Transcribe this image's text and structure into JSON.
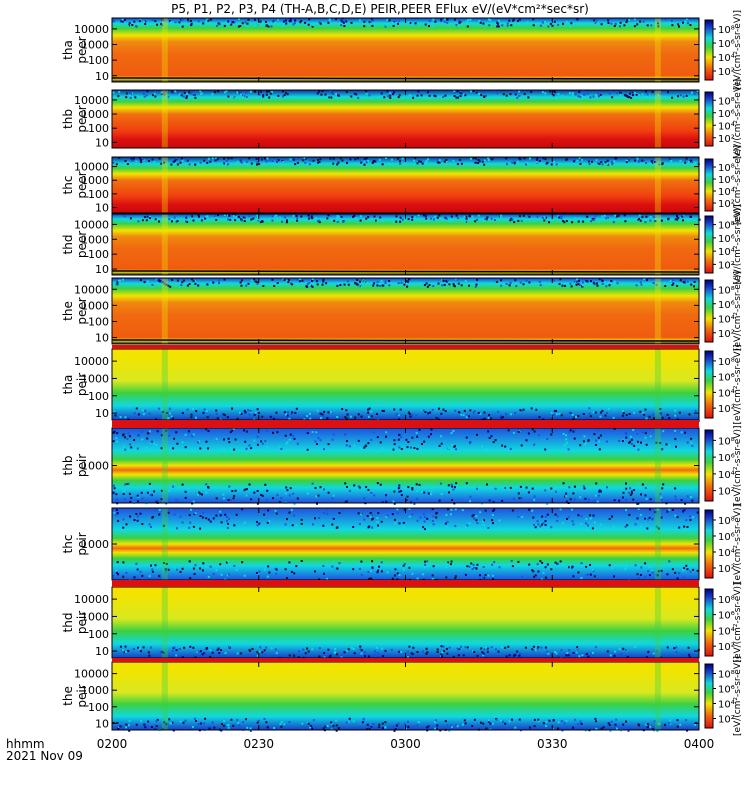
{
  "title": "P5, P1, P2, P3, P4 (TH-A,B,C,D,E) PEIR,PEER EFlux eV/(eV*cm²*sec*sr)",
  "time_axis": {
    "label_line1": "hhmm",
    "label_line2": "2021 Nov 09",
    "ticks": [
      "0200",
      "0230",
      "0300",
      "0330",
      "0400"
    ]
  },
  "colorbar": {
    "ticks": [
      "10²",
      "10⁴",
      "10⁶",
      "10⁸"
    ],
    "side_label": "[eV/(cm²-s-sr-eV)]"
  },
  "colors": {
    "red": "#dc1010",
    "orange": "#f06a10",
    "yellow": "#f2e400",
    "green": "#3cd040",
    "cyan": "#10d8e0",
    "blue": "#2050e0",
    "navy": "#000080",
    "dark": "#101030"
  },
  "chart_data": [
    {
      "type": "heatmap",
      "probe": "tha",
      "instrument": "peer",
      "ylabel1": "tha",
      "ylabel2": "peer",
      "yticks": [
        "10",
        "100",
        "1000",
        "10000"
      ]
    },
    {
      "type": "heatmap",
      "probe": "thb",
      "instrument": "peer",
      "ylabel1": "thb",
      "ylabel2": "peer",
      "yticks": [
        "10",
        "100",
        "1000",
        "10000"
      ]
    },
    {
      "type": "heatmap",
      "probe": "thc",
      "instrument": "peer",
      "ylabel1": "thc",
      "ylabel2": "peer",
      "yticks": [
        "10",
        "100",
        "1000",
        "10000"
      ]
    },
    {
      "type": "heatmap",
      "probe": "thd",
      "instrument": "peer",
      "ylabel1": "thd",
      "ylabel2": "peer",
      "yticks": [
        "10",
        "100",
        "1000",
        "10000"
      ]
    },
    {
      "type": "heatmap",
      "probe": "the",
      "instrument": "peer",
      "ylabel1": "the",
      "ylabel2": "peer",
      "yticks": [
        "10",
        "100",
        "1000",
        "10000"
      ]
    },
    {
      "type": "heatmap",
      "probe": "tha",
      "instrument": "peir",
      "ylabel1": "tha",
      "ylabel2": "peir",
      "yticks": [
        "10",
        "100",
        "1000",
        "10000"
      ]
    },
    {
      "type": "heatmap",
      "probe": "thb",
      "instrument": "peir",
      "ylabel1": "thb",
      "ylabel2": "peir",
      "yticks": [
        "1000"
      ]
    },
    {
      "type": "heatmap",
      "probe": "thc",
      "instrument": "peir",
      "ylabel1": "thc",
      "ylabel2": "peir",
      "yticks": [
        "1000"
      ]
    },
    {
      "type": "heatmap",
      "probe": "thd",
      "instrument": "peir",
      "ylabel1": "thd",
      "ylabel2": "peir",
      "yticks": [
        "10",
        "100",
        "1000",
        "10000"
      ]
    },
    {
      "type": "heatmap",
      "probe": "the",
      "instrument": "peir",
      "ylabel1": "the",
      "ylabel2": "peir",
      "yticks": [
        "10",
        "100",
        "1000",
        "10000"
      ]
    }
  ]
}
